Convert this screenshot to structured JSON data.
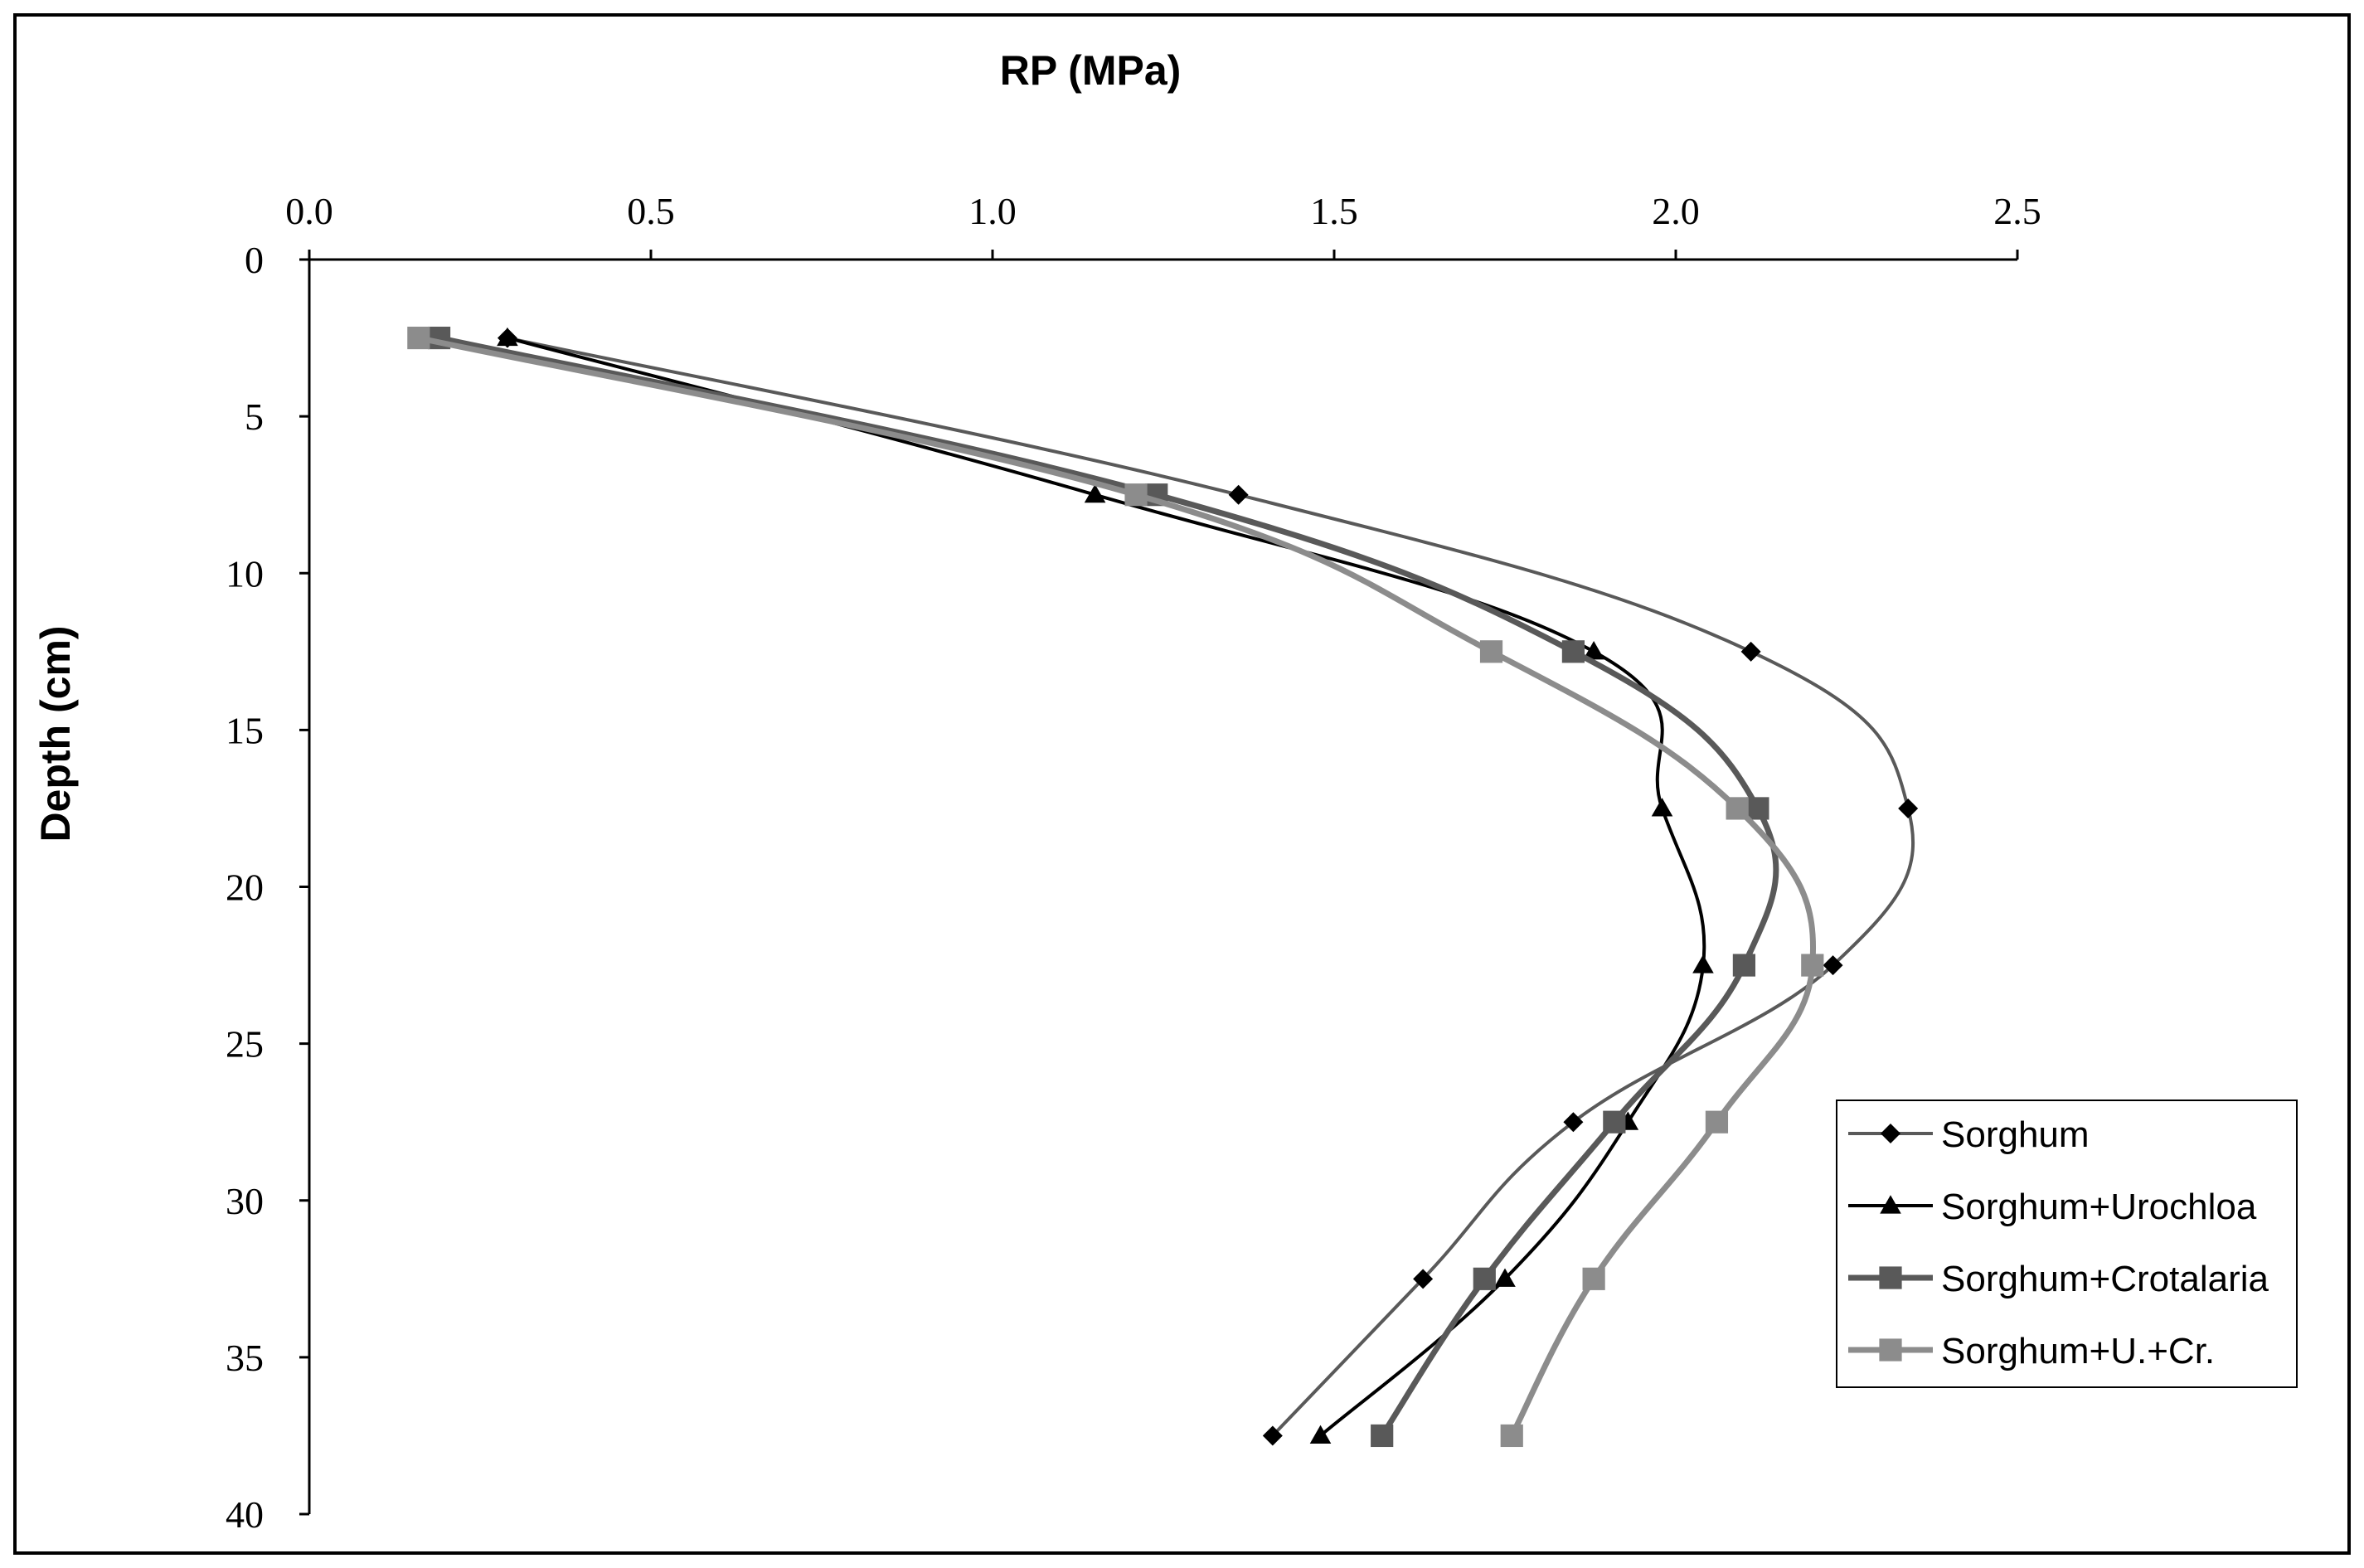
{
  "chart_data": {
    "type": "line",
    "title": "",
    "xlabel": "RP (MPa)",
    "ylabel": "Depth (cm)",
    "x_axis_position": "top",
    "y_axis_inverted": true,
    "xlim": [
      0,
      2.5
    ],
    "ylim": [
      0,
      40
    ],
    "x_ticks": [
      "0.0",
      "0.5",
      "1.0",
      "1.5",
      "2.0",
      "2.5"
    ],
    "y_ticks": [
      "0",
      "5",
      "10",
      "15",
      "20",
      "25",
      "30",
      "35",
      "40"
    ],
    "grid": false,
    "smoothed": true,
    "legend_position": "bottom-right",
    "depths": [
      2.5,
      7.5,
      12.5,
      17.5,
      22.5,
      27.5,
      32.5,
      37.5
    ],
    "series": [
      {
        "name": "Sorghum",
        "marker": "diamond",
        "color": "#595959",
        "values": [
          0.29,
          1.36,
          2.11,
          2.34,
          2.23,
          1.85,
          1.63,
          1.41
        ]
      },
      {
        "name": "Sorghum+Urochloa",
        "marker": "triangle",
        "color": "#000000",
        "values": [
          0.29,
          1.15,
          1.88,
          1.98,
          2.04,
          1.93,
          1.75,
          1.48
        ]
      },
      {
        "name": "Sorghum+Crotalaria",
        "marker": "square",
        "color": "#595959",
        "values": [
          0.19,
          1.24,
          1.85,
          2.12,
          2.1,
          1.91,
          1.72,
          1.57
        ]
      },
      {
        "name": "Sorghum+U.+Cr.",
        "marker": "square",
        "color": "#8c8c8c",
        "values": [
          0.16,
          1.21,
          1.73,
          2.09,
          2.2,
          2.06,
          1.88,
          1.76
        ]
      }
    ]
  }
}
